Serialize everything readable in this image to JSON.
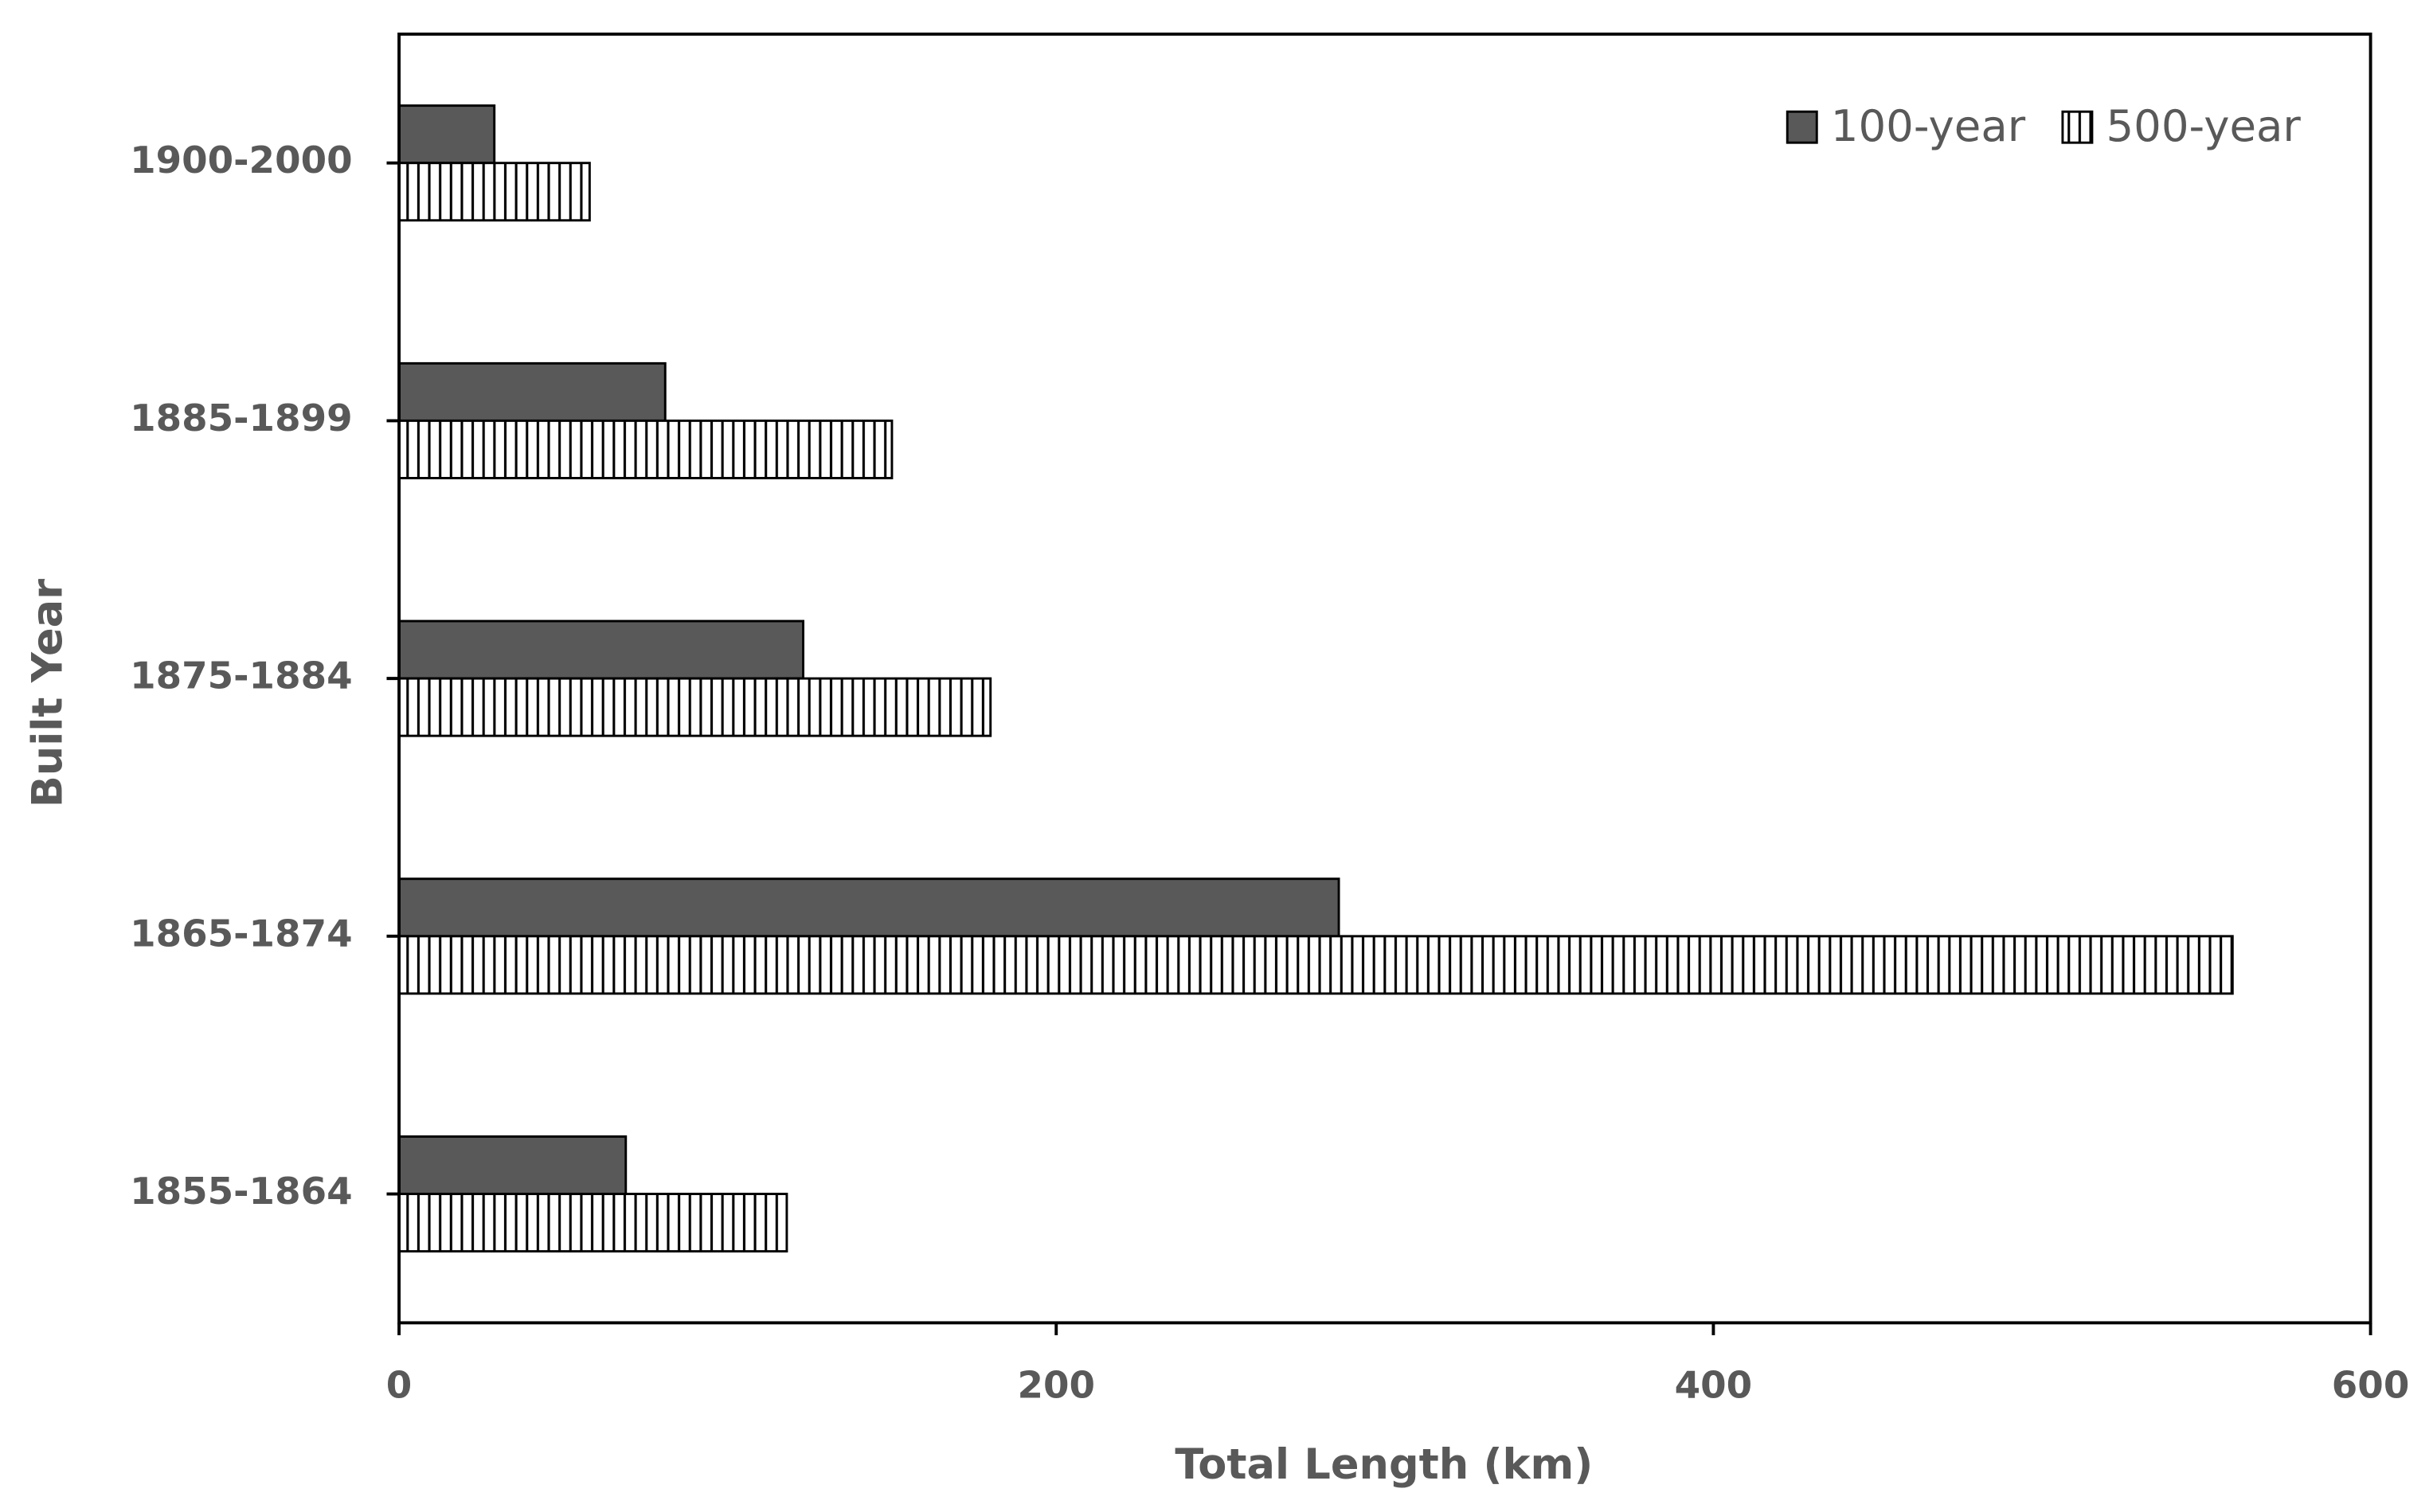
{
  "chart_data": {
    "type": "hbar",
    "x_label": "Total Length (km)",
    "y_label": "Built Year",
    "categories": [
      "1855-1864",
      "1865-1874",
      "1875-1884",
      "1885-1899",
      "1900-2000"
    ],
    "series": [
      {
        "name": "100-year",
        "color": "#595959",
        "values": [
          69,
          286,
          123,
          81,
          29
        ]
      },
      {
        "name": "500-year",
        "color": "#ffffff",
        "hatch": "vertical",
        "values": [
          118,
          558,
          180,
          150,
          58
        ]
      }
    ],
    "xlim": [
      0,
      600
    ],
    "xticks": [
      0,
      200,
      400,
      600
    ],
    "grid": false,
    "legend": "upper right"
  }
}
